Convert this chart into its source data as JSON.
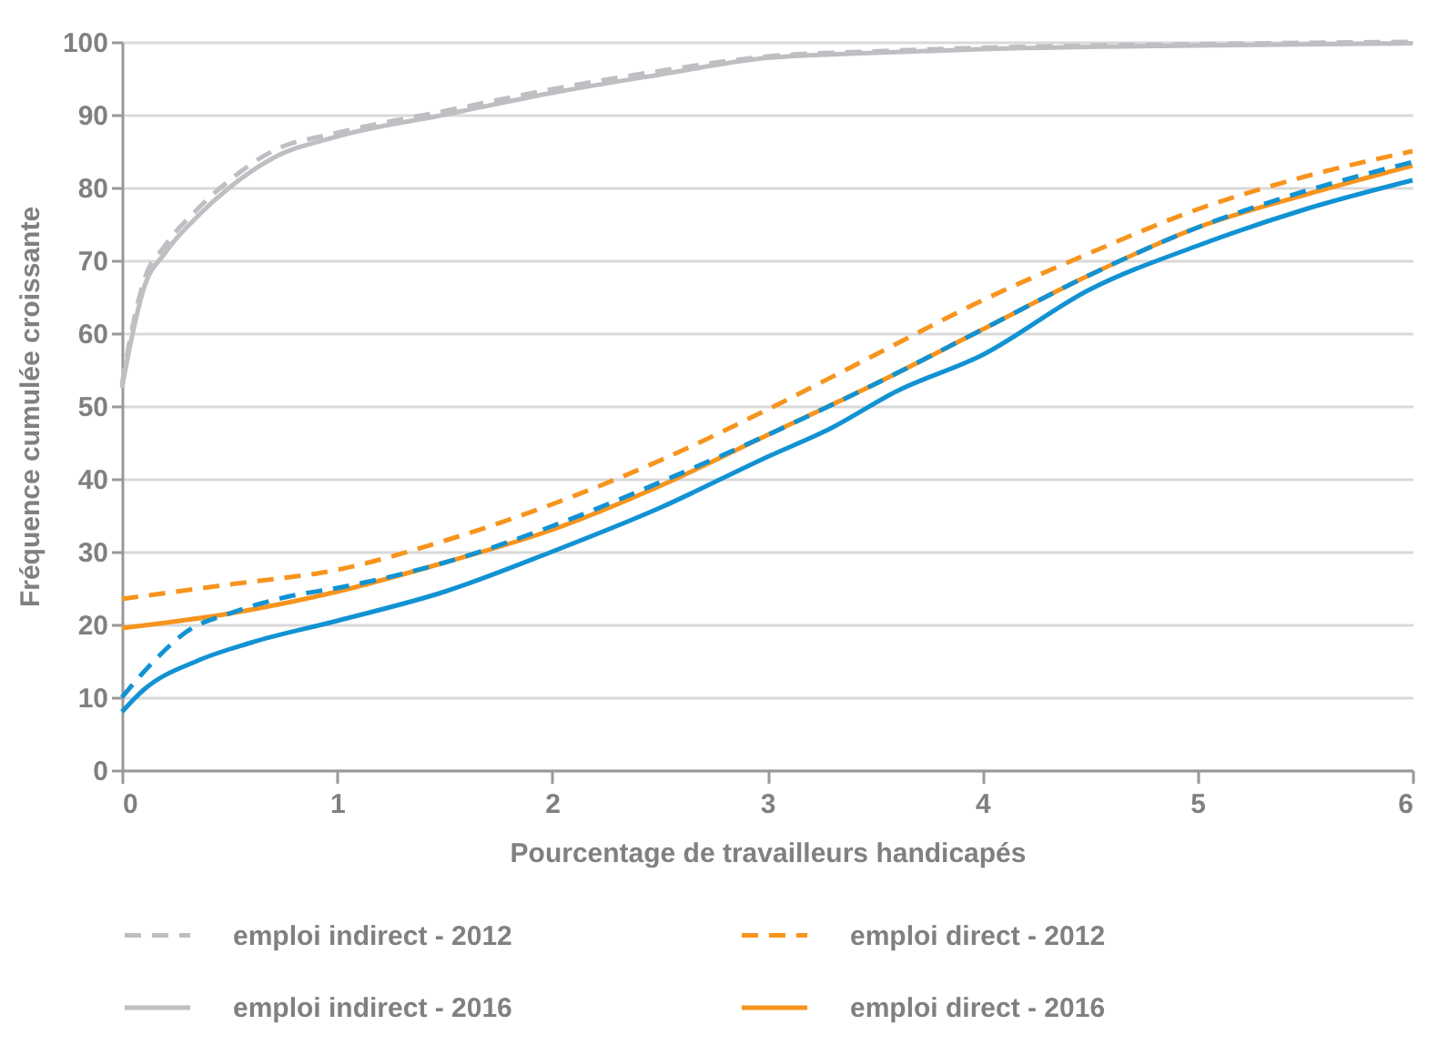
{
  "chart_data": {
    "type": "line",
    "xlabel": "Pourcentage de travailleurs handicapés",
    "ylabel": "Fréquence cumulée croissante",
    "xlim": [
      0,
      6
    ],
    "xticks": [
      0,
      1,
      2,
      3,
      4,
      5,
      6
    ],
    "ylim": [
      0,
      100
    ],
    "yticks": [
      0,
      10,
      20,
      30,
      40,
      50,
      60,
      70,
      80,
      90,
      100
    ],
    "grid": "y",
    "legend": "bottom",
    "series": [
      {
        "name": "emploi indirect - 2012",
        "color": "#bfbfc3",
        "line_style": "dashed",
        "x": [
          0,
          0.05,
          0.1,
          0.2,
          0.35,
          0.5,
          0.7,
          1,
          1.5,
          2,
          2.5,
          3,
          3.5,
          4,
          5,
          6
        ],
        "values": [
          53,
          61,
          67,
          72,
          77,
          81,
          85,
          87.5,
          90.5,
          93.5,
          96,
          98,
          98.7,
          99.2,
          99.7,
          100
        ]
      },
      {
        "name": "emploi indirect - 2016",
        "color": "#bfbfc3",
        "line_style": "solid",
        "x": [
          0,
          0.05,
          0.1,
          0.2,
          0.35,
          0.5,
          0.7,
          1,
          1.5,
          2,
          2.5,
          3,
          3.5,
          4,
          5,
          6
        ],
        "values": [
          52.5,
          60,
          66,
          71,
          76,
          80,
          84,
          87,
          90,
          93,
          95.5,
          97.8,
          98.5,
          99,
          99.5,
          99.8
        ]
      },
      {
        "name": "emploi direct - 2012",
        "color": "#f7941d",
        "line_style": "dashed",
        "x": [
          0,
          0.5,
          1,
          1.5,
          2,
          2.5,
          3,
          3.5,
          4,
          4.5,
          5,
          5.5,
          6
        ],
        "values": [
          23.5,
          25.5,
          27.5,
          31.5,
          36.5,
          42.5,
          49.5,
          57,
          64.5,
          71,
          77,
          81.5,
          85
        ]
      },
      {
        "name": "emploi direct - 2016",
        "color": "#f7941d",
        "line_style": "solid",
        "x": [
          0,
          0.5,
          1,
          1.5,
          2,
          2.5,
          3,
          3.5,
          4,
          4.5,
          5,
          5.5,
          6
        ],
        "values": [
          19.5,
          21.5,
          24.5,
          28.5,
          33,
          39,
          46,
          53,
          60.5,
          68,
          74.5,
          79,
          83
        ]
      },
      {
        "color": "#1192d3",
        "line_style": "dashed",
        "x": [
          0,
          0.15,
          0.3,
          0.5,
          0.8,
          1,
          1.5,
          2,
          2.5,
          3,
          3.5,
          4,
          4.5,
          5,
          5.5,
          6
        ],
        "values": [
          10,
          15,
          19,
          21.5,
          24,
          25,
          28.5,
          33.5,
          39.5,
          46,
          53,
          60.5,
          68,
          74.5,
          79.5,
          83.5
        ]
      },
      {
        "color": "#1192d3",
        "line_style": "solid",
        "x": [
          0,
          0.1,
          0.35,
          0.6,
          1,
          1.5,
          2,
          2.5,
          3,
          3.3,
          3.6,
          4,
          4.5,
          5,
          5.5,
          6
        ],
        "values": [
          8,
          11,
          15,
          17.5,
          20.5,
          24.5,
          30,
          36,
          43,
          47,
          52,
          57,
          66,
          72,
          77,
          81
        ]
      }
    ]
  }
}
